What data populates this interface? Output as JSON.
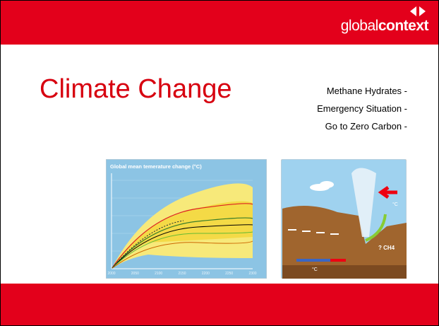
{
  "header": {
    "logo": {
      "light": "global",
      "bold": "context"
    }
  },
  "title": "Climate Change",
  "bullets": [
    "Methane Hydrates -",
    "Emergency Situation -",
    "Go to Zero Carbon -"
  ],
  "left_image": {
    "title": "Global mean temerature change (°C)",
    "x_labels": [
      "2000",
      "2050",
      "2100",
      "2150",
      "2200",
      "2250",
      "2300"
    ]
  },
  "right_image": {
    "labels": [
      "°C",
      "? CH4",
      "°C"
    ]
  }
}
